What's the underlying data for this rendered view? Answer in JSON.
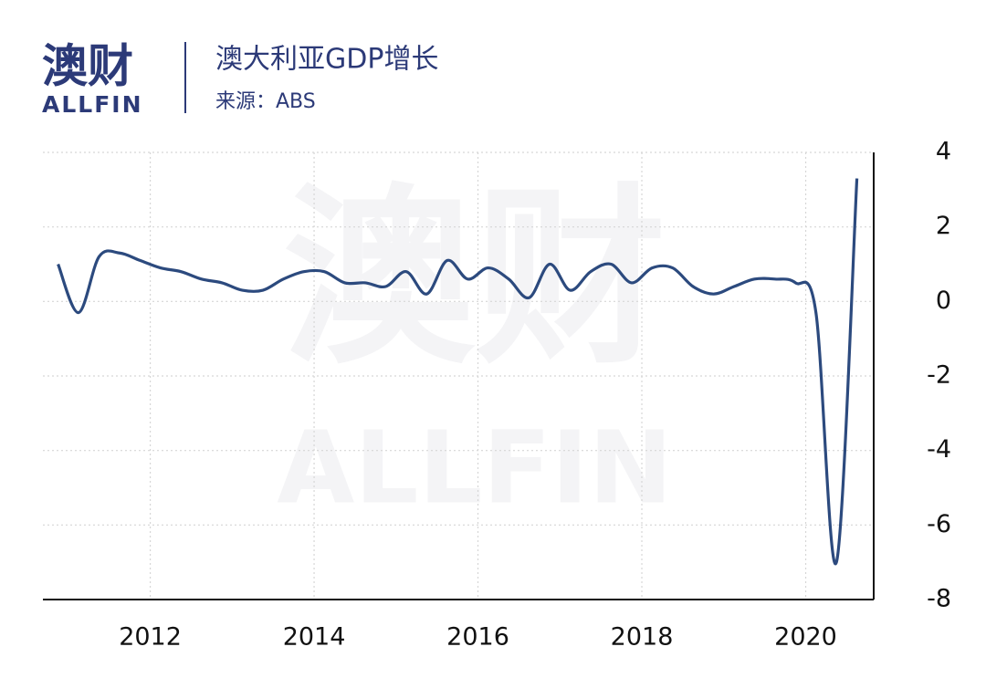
{
  "brand": {
    "cn": "澳财",
    "en": "ALLFIN"
  },
  "chart_data": {
    "type": "line",
    "title": "澳大利亚GDP增长",
    "subtitle": "来源：ABS",
    "x": [
      2010.875,
      2011.125,
      2011.375,
      2011.625,
      2011.875,
      2012.125,
      2012.375,
      2012.625,
      2012.875,
      2013.125,
      2013.375,
      2013.625,
      2013.875,
      2014.125,
      2014.375,
      2014.625,
      2014.875,
      2015.125,
      2015.375,
      2015.625,
      2015.875,
      2016.125,
      2016.375,
      2016.625,
      2016.875,
      2017.125,
      2017.375,
      2017.625,
      2017.875,
      2018.125,
      2018.375,
      2018.625,
      2018.875,
      2019.125,
      2019.375,
      2019.625,
      2019.875,
      2020.125,
      2020.375,
      2020.625
    ],
    "series": [
      {
        "name": "GDP增长",
        "color": "#2c4a7e",
        "values": [
          1.0,
          -0.3,
          1.2,
          1.3,
          1.1,
          0.9,
          0.8,
          0.6,
          0.5,
          0.3,
          0.3,
          0.6,
          0.8,
          0.8,
          0.5,
          0.5,
          0.4,
          0.8,
          0.2,
          1.1,
          0.6,
          0.9,
          0.6,
          0.1,
          1.0,
          0.3,
          0.8,
          1.0,
          0.5,
          0.9,
          0.9,
          0.4,
          0.2,
          0.4,
          0.6,
          0.6,
          0.5,
          -0.3,
          -7.0,
          3.3
        ]
      }
    ],
    "xlim": [
      2010.69,
      2020.83
    ],
    "xticks": [
      2012,
      2014,
      2016,
      2018,
      2020
    ],
    "ylim": [
      -8,
      4
    ],
    "yticks": [
      -8,
      -6,
      -4,
      -2,
      0,
      2,
      4
    ],
    "grid": true
  }
}
